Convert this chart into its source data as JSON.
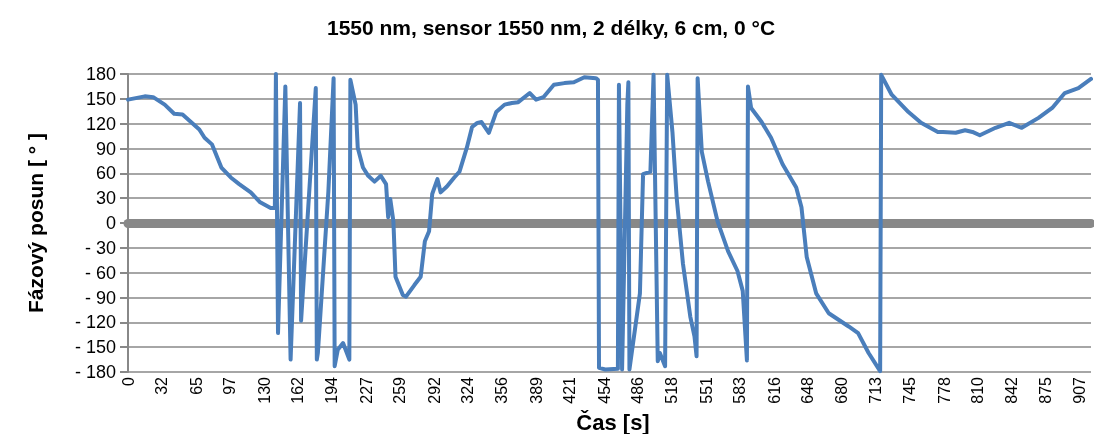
{
  "chart_data": {
    "type": "line",
    "title": "1550 nm, sensor 1550 nm, 2 délky, 6 cm, 0 °C",
    "xlabel": "Čas [s]",
    "ylabel": "Fázový posun [ ° ]",
    "xlim": [
      0,
      918
    ],
    "xticks": [
      0,
      32,
      65,
      97,
      130,
      162,
      194,
      227,
      259,
      292,
      324,
      356,
      389,
      421,
      454,
      486,
      518,
      551,
      583,
      616,
      648,
      680,
      713,
      745,
      778,
      810,
      842,
      875,
      907
    ],
    "ylim": [
      -180,
      180
    ],
    "yticks": [
      {
        "value": -180,
        "label": "- 180"
      },
      {
        "value": -150,
        "label": "- 150"
      },
      {
        "value": -120,
        "label": "- 120"
      },
      {
        "value": -90,
        "label": "- 90"
      },
      {
        "value": -60,
        "label": "- 60"
      },
      {
        "value": -30,
        "label": "- 30"
      },
      0,
      30,
      60,
      90,
      120,
      150,
      180
    ],
    "grid": "y",
    "marker": "none",
    "line_style": "solid",
    "series": [
      {
        "color": "#4a7ebb",
        "x": [
          0,
          16,
          24,
          35,
          44,
          52,
          60,
          68,
          73,
          80,
          89,
          98,
          106,
          117,
          126,
          136,
          140,
          141,
          143,
          150,
          155,
          164,
          165,
          179,
          180,
          181,
          191,
          196,
          197,
          200,
          205,
          211,
          212,
          217,
          219,
          224,
          229,
          235,
          241,
          246,
          248,
          250,
          253,
          255,
          262,
          265,
          273,
          279,
          283,
          287,
          290,
          295,
          298,
          304,
          311,
          316,
          323,
          328,
          333,
          337,
          344,
          351,
          359,
          366,
          372,
          383,
          389,
          396,
          406,
          416,
          425,
          435,
          446,
          448,
          449,
          455,
          467,
          468,
          471,
          476,
          477,
          478,
          488,
          491,
          498,
          501,
          505,
          507,
          512,
          514,
          519,
          523,
          529,
          536,
          540,
          542,
          543,
          547,
          553,
          562,
          572,
          581,
          586,
          590,
          591,
          594,
          604,
          613,
          624,
          637,
          642,
          647,
          656,
          668,
          687,
          696,
          706,
          717,
          718,
          728,
          744,
          756,
          772,
          777,
          789,
          798,
          805,
          812,
          827,
          840,
          852,
          868,
          881,
          893,
          906,
          918
        ],
        "values": [
          149,
          153,
          152,
          143,
          132,
          131,
          122,
          113,
          103,
          95,
          67,
          55,
          47,
          37,
          25,
          18,
          18,
          180,
          -133,
          165,
          -165,
          145,
          -118,
          163,
          -165,
          -157,
          38,
          175,
          -173,
          -153,
          -145,
          -165,
          173,
          143,
          91,
          67,
          57,
          50,
          57,
          47,
          7,
          29,
          2,
          -65,
          -87,
          -89,
          -75,
          -65,
          -22,
          -10,
          35,
          53,
          37,
          44,
          55,
          62,
          91,
          116,
          121,
          122,
          109,
          134,
          143,
          145,
          146,
          157,
          149,
          152,
          167,
          169,
          170,
          176,
          175,
          173,
          -175,
          -177,
          -176,
          167,
          -177,
          143,
          170,
          -177,
          -85,
          59,
          62,
          179,
          -167,
          -157,
          -173,
          179,
          110,
          31,
          -49,
          -113,
          -137,
          -161,
          175,
          86,
          50,
          2,
          -34,
          -58,
          -82,
          -166,
          165,
          139,
          122,
          103,
          71,
          43,
          19,
          -41,
          -85,
          -109,
          -125,
          -133,
          -157,
          -179,
          179,
          155,
          134,
          121,
          110,
          110,
          109,
          112,
          110,
          106,
          115,
          121,
          115,
          127,
          139,
          157,
          163,
          174
        ]
      }
    ]
  }
}
